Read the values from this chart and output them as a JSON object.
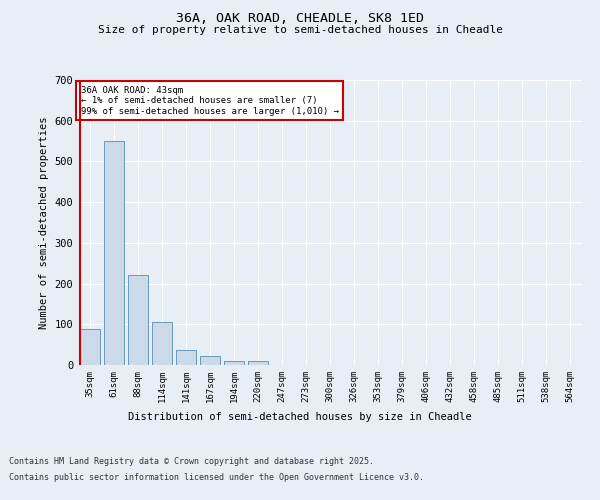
{
  "title_line1": "36A, OAK ROAD, CHEADLE, SK8 1ED",
  "title_line2": "Size of property relative to semi-detached houses in Cheadle",
  "xlabel": "Distribution of semi-detached houses by size in Cheadle",
  "ylabel": "Number of semi-detached properties",
  "annotation_title": "36A OAK ROAD: 43sqm",
  "annotation_line2": "← 1% of semi-detached houses are smaller (7)",
  "annotation_line3": "99% of semi-detached houses are larger (1,010) →",
  "footer_line1": "Contains HM Land Registry data © Crown copyright and database right 2025.",
  "footer_line2": "Contains public sector information licensed under the Open Government Licence v3.0.",
  "categories": [
    "35sqm",
    "61sqm",
    "88sqm",
    "114sqm",
    "141sqm",
    "167sqm",
    "194sqm",
    "220sqm",
    "247sqm",
    "273sqm",
    "300sqm",
    "326sqm",
    "353sqm",
    "379sqm",
    "406sqm",
    "432sqm",
    "458sqm",
    "485sqm",
    "511sqm",
    "538sqm",
    "564sqm"
  ],
  "values": [
    88,
    550,
    220,
    105,
    38,
    22,
    10,
    10,
    0,
    0,
    0,
    0,
    0,
    0,
    0,
    0,
    0,
    0,
    0,
    0,
    0
  ],
  "bar_color": "#ccd9e8",
  "bar_edge_color": "#6699bb",
  "highlight_bar_index": 0,
  "highlight_line_color": "#cc0000",
  "annotation_box_color": "#ffffff",
  "annotation_box_edge_color": "#cc0000",
  "background_color": "#e8eef5",
  "plot_bg_color": "#e8eef5",
  "grid_color": "#ffffff",
  "ylim": [
    0,
    700
  ],
  "yticks": [
    0,
    100,
    200,
    300,
    400,
    500,
    600,
    700
  ]
}
